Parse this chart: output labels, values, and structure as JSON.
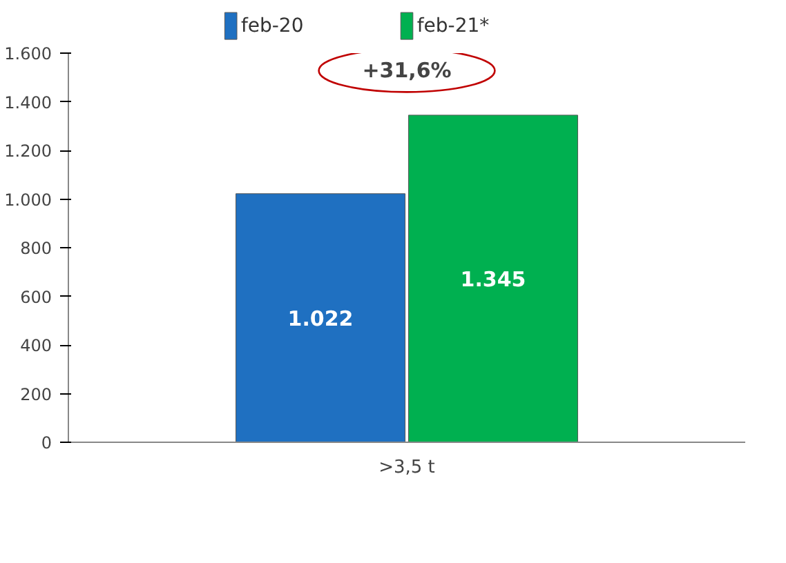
{
  "chart_data": {
    "type": "bar",
    "categories": [
      ">3,5 t"
    ],
    "series": [
      {
        "name": "feb-20",
        "color": "#1f70c1",
        "values": [
          1022
        ],
        "value_labels": [
          "1.022"
        ]
      },
      {
        "name": "feb-21*",
        "color": "#00b050",
        "values": [
          1345
        ],
        "value_labels": [
          "1.345"
        ]
      }
    ],
    "ylim": [
      0,
      1600
    ],
    "yticks": [
      {
        "value": 0,
        "label": "0"
      },
      {
        "value": 200,
        "label": "200"
      },
      {
        "value": 400,
        "label": "400"
      },
      {
        "value": 600,
        "label": "600"
      },
      {
        "value": 800,
        "label": "800"
      },
      {
        "value": 1000,
        "label": "1.000"
      },
      {
        "value": 1200,
        "label": "1.200"
      },
      {
        "value": 1400,
        "label": "1.400"
      },
      {
        "value": 1600,
        "label": "1.600"
      }
    ],
    "annotations": [
      "+31,6%"
    ],
    "grid": false,
    "legend": "top"
  }
}
